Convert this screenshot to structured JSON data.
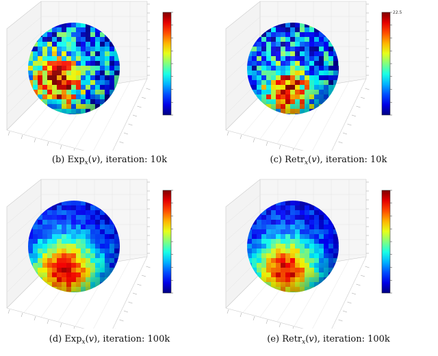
{
  "figure": {
    "panels": [
      {
        "id": "b",
        "caption": {
          "label": "(b)",
          "op": "Exp",
          "sub": "x",
          "var": "v",
          "suffix": ", iteration:  10k"
        },
        "heat": {
          "level": 0.28,
          "noise": 0.55,
          "hotspot": [
            0.3,
            0.62
          ],
          "spread": 0.35
        },
        "colorbar": {
          "ticks": [
            "",
            "",
            "",
            "",
            "",
            "",
            "",
            "",
            ""
          ]
        }
      },
      {
        "id": "c",
        "caption": {
          "label": "(c)",
          "op": "Retr",
          "sub": "x",
          "var": "v",
          "suffix": ", iteration:  10k"
        },
        "heat": {
          "level": 0.3,
          "noise": 0.55,
          "hotspot": [
            0.4,
            0.72
          ],
          "spread": 0.3
        },
        "colorbar": {
          "ticks": [
            "22.5",
            "",
            "",
            "",
            "",
            "",
            "",
            "",
            ""
          ]
        }
      },
      {
        "id": "d",
        "caption": {
          "label": "(d)",
          "op": "Exp",
          "sub": "x",
          "var": "v",
          "suffix": ", iteration:  100k"
        },
        "heat": {
          "level": 0.18,
          "noise": 0.18,
          "hotspot": [
            0.38,
            0.74
          ],
          "spread": 0.42
        },
        "colorbar": {
          "ticks": [
            "",
            "",
            "",
            "",
            "",
            "",
            "",
            "",
            ""
          ]
        }
      },
      {
        "id": "e",
        "caption": {
          "label": "(e)",
          "op": "Retr",
          "sub": "x",
          "var": "v",
          "suffix": ", iteration:  100k"
        },
        "heat": {
          "level": 0.18,
          "noise": 0.18,
          "hotspot": [
            0.4,
            0.74
          ],
          "spread": 0.4
        },
        "colorbar": {
          "ticks": [
            "",
            "",
            "",
            "",
            "",
            "",
            "",
            "",
            ""
          ]
        }
      }
    ]
  }
}
